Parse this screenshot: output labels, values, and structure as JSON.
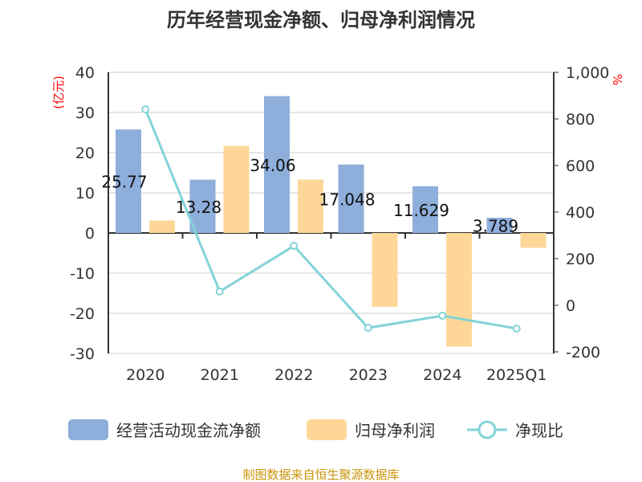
{
  "chart_data": {
    "type": "bar",
    "title": "历年经营现金净额、归母净利润情况",
    "categories": [
      "2020",
      "2021",
      "2022",
      "2023",
      "2024",
      "2025Q1"
    ],
    "y_left": {
      "label": "(亿元)",
      "range": [
        -30,
        40
      ],
      "ticks": [
        "40",
        "30",
        "20",
        "10",
        "0",
        "-10",
        "-20",
        "-30"
      ]
    },
    "y_right": {
      "label": "%",
      "range": [
        -200,
        1000
      ],
      "ticks": [
        "1,000",
        "800",
        "600",
        "400",
        "200",
        "0",
        "-200"
      ]
    },
    "series": [
      {
        "name": "经营活动现金流净额",
        "type": "bar",
        "axis": "left",
        "color": "#8eaedb",
        "values": [
          25.77,
          13.28,
          34.06,
          17.048,
          11.629,
          3.789
        ],
        "labels": [
          "25.77",
          "13.28",
          "34.06",
          "17.048",
          "11.629",
          "3.789"
        ]
      },
      {
        "name": "归母净利润",
        "type": "bar",
        "axis": "left",
        "color": "#fed798",
        "values": [
          3.1,
          21.7,
          13.3,
          -18.4,
          -28.3,
          -3.7
        ]
      },
      {
        "name": "净现比",
        "type": "line",
        "axis": "right",
        "color": "#83d3d8",
        "values": [
          841,
          59,
          255,
          -97,
          -45,
          -100
        ]
      }
    ],
    "grid": true,
    "legend": "bottom",
    "source": "制图数据来自恒生聚源数据库"
  }
}
